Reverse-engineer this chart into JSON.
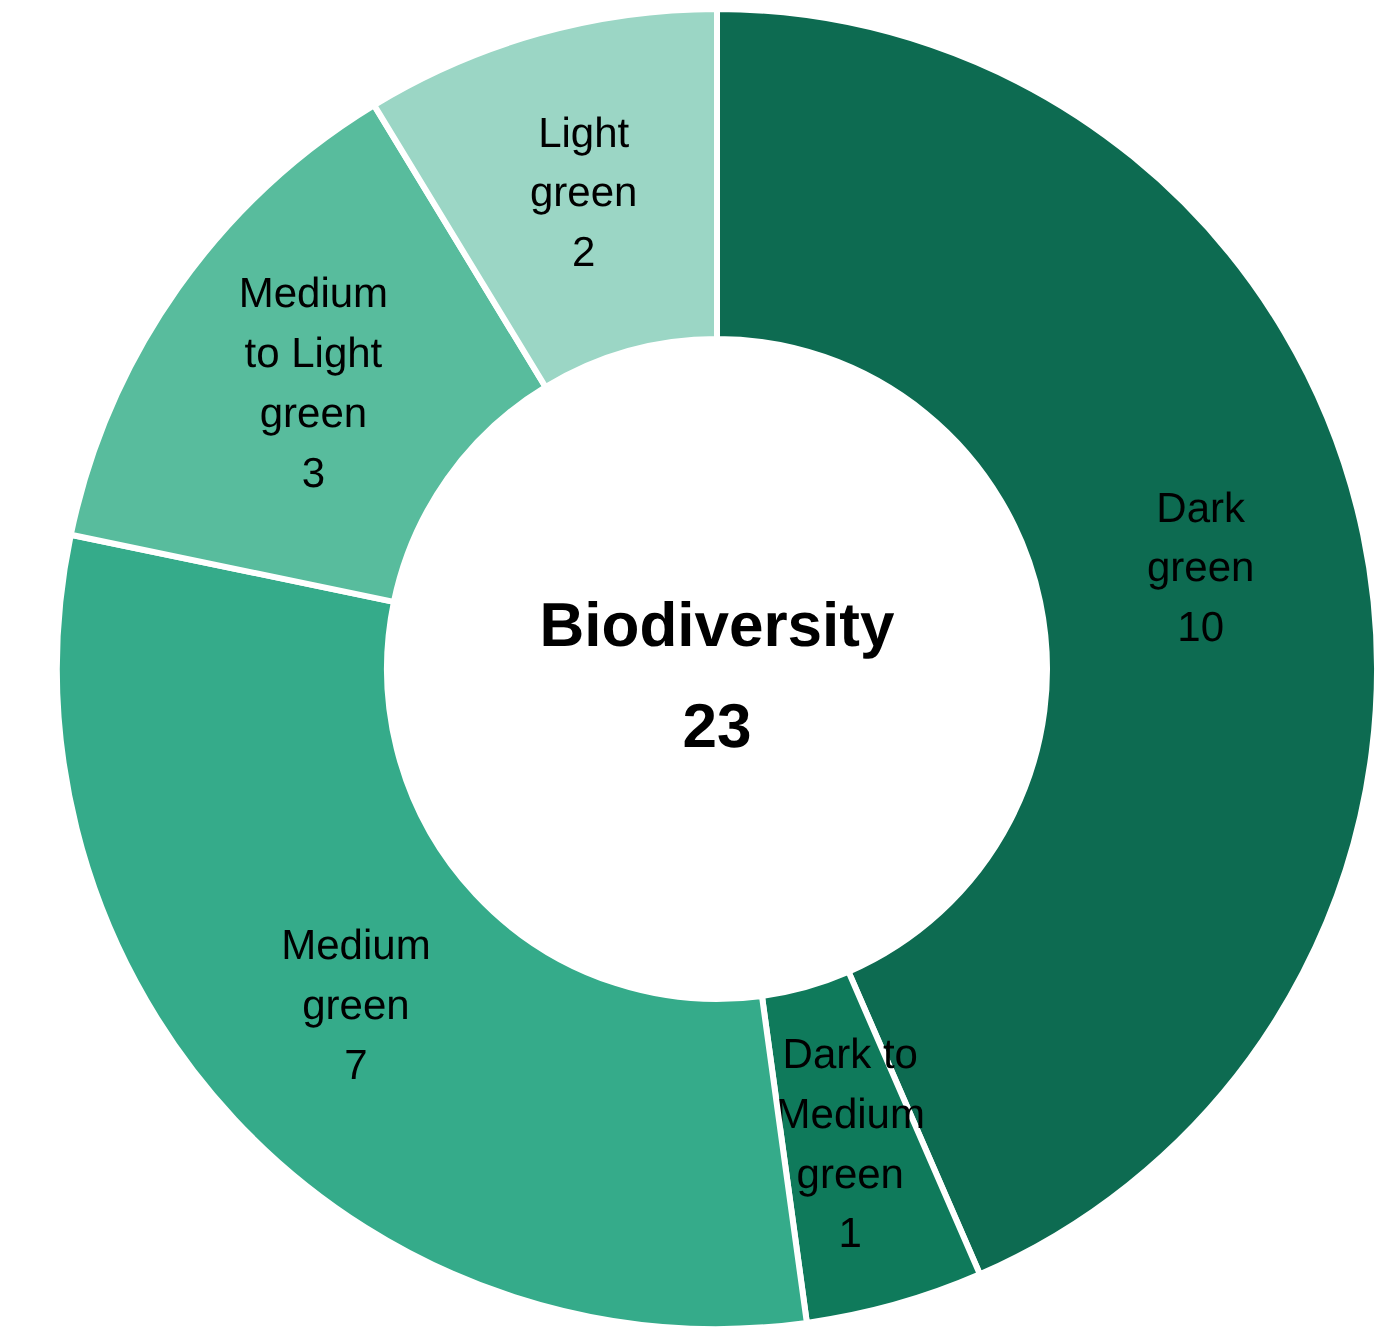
{
  "chart_data": {
    "type": "donut",
    "title": "Biodiversity",
    "annotations": [
      "23"
    ],
    "categories": [
      "Dark green",
      "Dark to Medium green",
      "Medium green",
      "Medium to Light green",
      "Light green"
    ],
    "values": [
      10,
      1,
      7,
      3,
      2
    ],
    "colors": [
      "#0d6b51",
      "#0f7a5b",
      "#35ab8a",
      "#58bc9d",
      "#9bd6c5"
    ],
    "data_labels": true
  }
}
